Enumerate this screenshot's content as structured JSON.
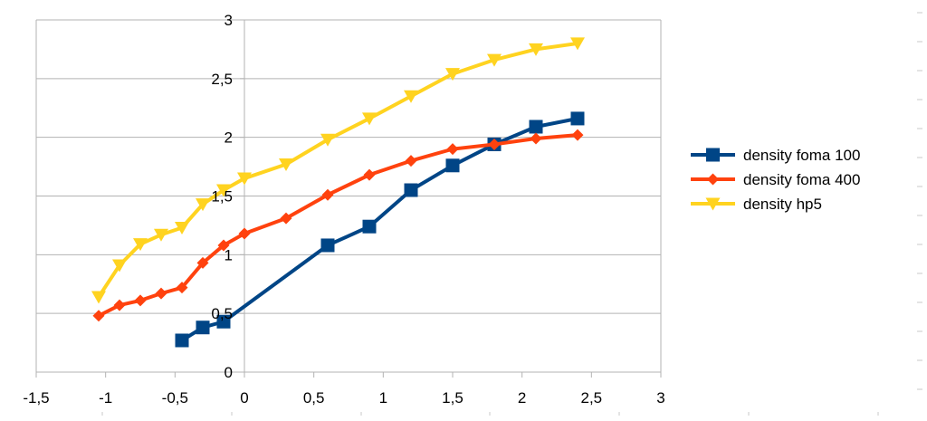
{
  "chart_data": {
    "type": "scatter",
    "title": "",
    "xlabel": "",
    "ylabel": "",
    "xlim": [
      -1.5,
      3
    ],
    "ylim": [
      0,
      3
    ],
    "grid": "horizontal",
    "legend_position": "right",
    "x_ticks": [
      -1.5,
      -1,
      -0.5,
      0,
      0.5,
      1,
      1.5,
      2,
      2.5,
      3
    ],
    "y_ticks": [
      0,
      0.5,
      1,
      1.5,
      2,
      2.5,
      3
    ],
    "x_tick_labels": [
      "-1,5",
      "-1",
      "-0,5",
      "0",
      "0,5",
      "1",
      "1,5",
      "2",
      "2,5",
      "3"
    ],
    "y_tick_labels": [
      "0",
      "0,5",
      "1",
      "1,5",
      "2",
      "2,5",
      "3"
    ],
    "series": [
      {
        "name": "density foma 100",
        "color": "#004586",
        "marker": "square",
        "points": [
          [
            -0.45,
            0.27
          ],
          [
            -0.3,
            0.38
          ],
          [
            -0.15,
            0.43
          ],
          [
            0.6,
            1.08
          ],
          [
            0.9,
            1.24
          ],
          [
            1.2,
            1.55
          ],
          [
            1.5,
            1.76
          ],
          [
            1.8,
            1.94
          ],
          [
            2.1,
            2.09
          ],
          [
            2.4,
            2.16
          ]
        ]
      },
      {
        "name": "density foma 400",
        "color": "#ff420e",
        "marker": "diamond",
        "points": [
          [
            -1.05,
            0.48
          ],
          [
            -0.9,
            0.57
          ],
          [
            -0.75,
            0.61
          ],
          [
            -0.6,
            0.67
          ],
          [
            -0.45,
            0.72
          ],
          [
            -0.3,
            0.93
          ],
          [
            -0.15,
            1.08
          ],
          [
            0,
            1.18
          ],
          [
            0.3,
            1.31
          ],
          [
            0.6,
            1.51
          ],
          [
            0.9,
            1.68
          ],
          [
            1.2,
            1.8
          ],
          [
            1.5,
            1.9
          ],
          [
            1.8,
            1.94
          ],
          [
            2.1,
            1.99
          ],
          [
            2.4,
            2.02
          ]
        ]
      },
      {
        "name": "density hp5",
        "color": "#ffd320",
        "marker": "triangle-down",
        "points": [
          [
            -1.05,
            0.64
          ],
          [
            -0.9,
            0.91
          ],
          [
            -0.75,
            1.09
          ],
          [
            -0.6,
            1.17
          ],
          [
            -0.45,
            1.23
          ],
          [
            -0.3,
            1.43
          ],
          [
            -0.15,
            1.55
          ],
          [
            0,
            1.65
          ],
          [
            0.3,
            1.77
          ],
          [
            0.6,
            1.98
          ],
          [
            0.9,
            2.16
          ],
          [
            1.2,
            2.35
          ],
          [
            1.5,
            2.54
          ],
          [
            1.8,
            2.66
          ],
          [
            2.1,
            2.75
          ],
          [
            2.4,
            2.8
          ]
        ]
      }
    ]
  }
}
